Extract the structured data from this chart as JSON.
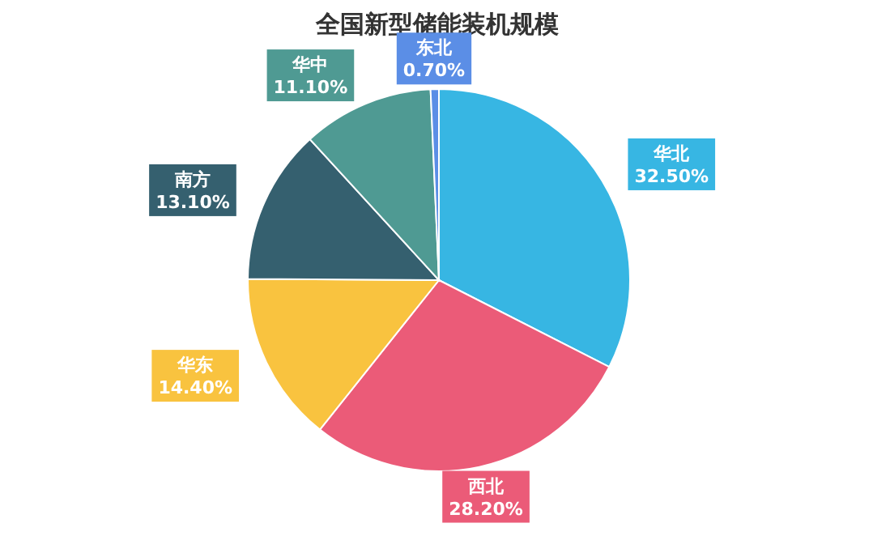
{
  "chart_data": {
    "type": "pie",
    "title": "全国新型储能装机规模",
    "categories": [
      "华北",
      "西北",
      "华东",
      "南方",
      "华中",
      "东北"
    ],
    "values": [
      32.5,
      28.2,
      14.4,
      13.1,
      11.1,
      0.7
    ],
    "colors": [
      "#37b6e3",
      "#eb5b78",
      "#f9c33f",
      "#35606f",
      "#4f9a93",
      "#5b8ee6"
    ],
    "value_labels": [
      "32.50%",
      "28.20%",
      "14.40%",
      "13.10%",
      "11.10%",
      "0.70%"
    ]
  }
}
